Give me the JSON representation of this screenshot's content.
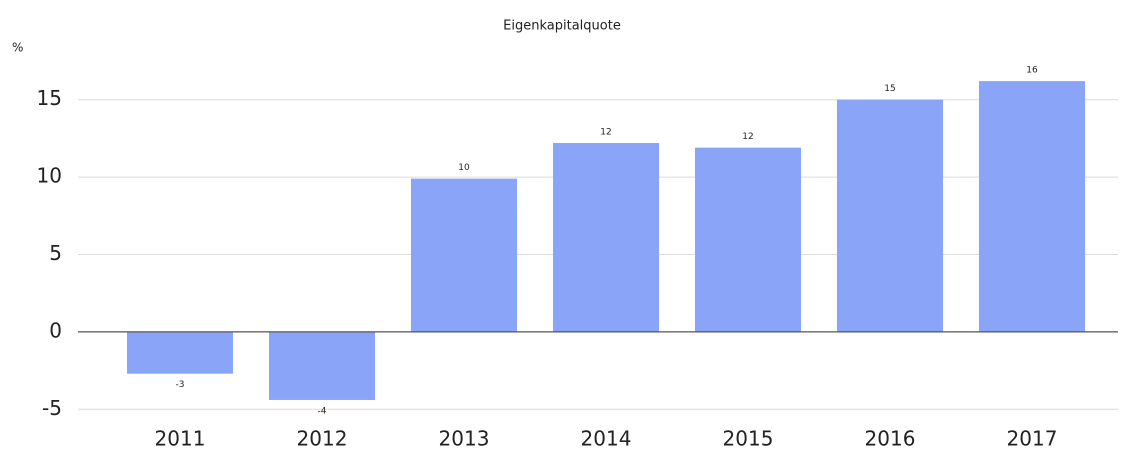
{
  "chart_data": {
    "type": "bar",
    "title": "Eigenkapitalquote",
    "y_label": "%",
    "categories": [
      "2011",
      "2012",
      "2013",
      "2014",
      "2015",
      "2016",
      "2017"
    ],
    "values": [
      -2.7,
      -4.4,
      9.9,
      12.2,
      11.9,
      15.0,
      16.2
    ],
    "value_labels": [
      "-3",
      "-4",
      "10",
      "12",
      "12",
      "15",
      "16"
    ],
    "color": "#8aa4f8",
    "ylim": [
      -5.5,
      17.5
    ],
    "yticks": [
      -5,
      0,
      5,
      10,
      15
    ],
    "grid": true
  }
}
